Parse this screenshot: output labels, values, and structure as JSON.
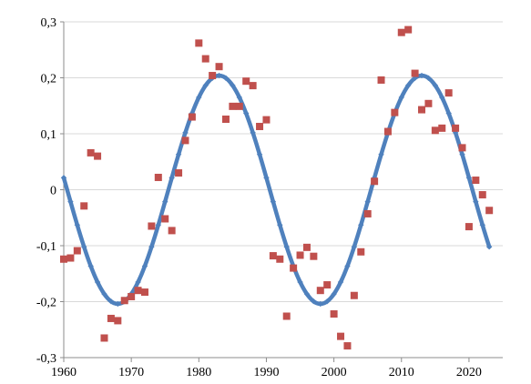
{
  "chart_data": {
    "type": "scatter",
    "title": "",
    "xlabel": "",
    "ylabel": "",
    "xlim": [
      1960,
      2025
    ],
    "ylim": [
      -0.3,
      0.3
    ],
    "grid": true,
    "legend": "none",
    "x_ticks": [
      {
        "value": 1960,
        "label": "1960"
      },
      {
        "value": 1970,
        "label": "1970"
      },
      {
        "value": 1980,
        "label": "1980"
      },
      {
        "value": 1990,
        "label": "1990"
      },
      {
        "value": 2000,
        "label": "2000"
      },
      {
        "value": 2010,
        "label": "2010"
      },
      {
        "value": 2020,
        "label": "2020"
      }
    ],
    "y_ticks": [
      {
        "value": 0.3,
        "label": "0,3"
      },
      {
        "value": 0.2,
        "label": "0,2"
      },
      {
        "value": 0.1,
        "label": "0,1"
      },
      {
        "value": 0,
        "label": "0"
      },
      {
        "value": -0.1,
        "label": "-0,1"
      },
      {
        "value": -0.2,
        "label": "-0,2"
      },
      {
        "value": -0.3,
        "label": "-0,3"
      }
    ],
    "series": [
      {
        "kind": "scatter",
        "color": "#c0504d",
        "marker": "square",
        "points": [
          [
            1960,
            -0.124
          ],
          [
            1961,
            -0.122
          ],
          [
            1962,
            -0.109
          ],
          [
            1963,
            -0.029
          ],
          [
            1964,
            0.066
          ],
          [
            1965,
            0.06
          ],
          [
            1966,
            -0.265
          ],
          [
            1967,
            -0.23
          ],
          [
            1968,
            -0.234
          ],
          [
            1969,
            -0.198
          ],
          [
            1970,
            -0.191
          ],
          [
            1971,
            -0.18
          ],
          [
            1972,
            -0.183
          ],
          [
            1973,
            -0.065
          ],
          [
            1974,
            0.022
          ],
          [
            1975,
            -0.052
          ],
          [
            1976,
            -0.073
          ],
          [
            1977,
            0.03
          ],
          [
            1978,
            0.088
          ],
          [
            1979,
            0.13
          ],
          [
            1980,
            0.262
          ],
          [
            1981,
            0.234
          ],
          [
            1982,
            0.204
          ],
          [
            1983,
            0.22
          ],
          [
            1984,
            0.126
          ],
          [
            1985,
            0.149
          ],
          [
            1986,
            0.149
          ],
          [
            1987,
            0.194
          ],
          [
            1988,
            0.186
          ],
          [
            1989,
            0.113
          ],
          [
            1990,
            0.125
          ],
          [
            1991,
            -0.118
          ],
          [
            1992,
            -0.124
          ],
          [
            1993,
            -0.226
          ],
          [
            1994,
            -0.14
          ],
          [
            1995,
            -0.117
          ],
          [
            1996,
            -0.103
          ],
          [
            1997,
            -0.119
          ],
          [
            1998,
            -0.18
          ],
          [
            1999,
            -0.17
          ],
          [
            2000,
            -0.222
          ],
          [
            2001,
            -0.262
          ],
          [
            2002,
            -0.279
          ],
          [
            2003,
            -0.189
          ],
          [
            2004,
            -0.111
          ],
          [
            2005,
            -0.043
          ],
          [
            2006,
            0.015
          ],
          [
            2007,
            0.196
          ],
          [
            2008,
            0.104
          ],
          [
            2009,
            0.138
          ],
          [
            2010,
            0.281
          ],
          [
            2011,
            0.286
          ],
          [
            2012,
            0.208
          ],
          [
            2013,
            0.143
          ],
          [
            2014,
            0.154
          ],
          [
            2015,
            0.106
          ],
          [
            2016,
            0.11
          ],
          [
            2017,
            0.173
          ],
          [
            2018,
            0.11
          ],
          [
            2019,
            0.075
          ],
          [
            2020,
            -0.066
          ],
          [
            2021,
            0.017
          ],
          [
            2022,
            -0.009
          ],
          [
            2023,
            -0.037
          ]
        ]
      },
      {
        "kind": "line",
        "color": "#4f81bd",
        "curve": {
          "amplitude": 0.204,
          "period": 30,
          "peak_year": 1983,
          "offset": 0
        },
        "x_range": [
          1960,
          2023
        ],
        "marker": "diamond"
      }
    ]
  }
}
